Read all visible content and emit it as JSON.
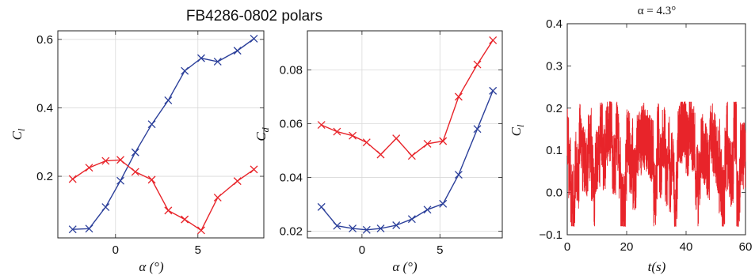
{
  "figure_title": "FB4286-0802 polars",
  "chart_data": [
    {
      "type": "line",
      "xlabel": "α (°)",
      "ylabel": "Cl",
      "xlim": [
        -3.5,
        9
      ],
      "ylim": [
        0.02,
        0.625
      ],
      "xticks": [
        "0",
        "5"
      ],
      "xtick_values": [
        0,
        5
      ],
      "yticks": [
        "0.2",
        "0.4",
        "0.6"
      ],
      "ytick_values": [
        0.2,
        0.4,
        0.6
      ],
      "grid": true,
      "marker": "x",
      "series": [
        {
          "color": "#2b3f9a",
          "x": [
            -2.6,
            -1.6,
            -0.6,
            0.3,
            1.2,
            2.2,
            3.2,
            4.2,
            5.2,
            6.2,
            7.4,
            8.4
          ],
          "y": [
            0.045,
            0.047,
            0.11,
            0.187,
            0.27,
            0.352,
            0.422,
            0.508,
            0.545,
            0.535,
            0.567,
            0.602
          ]
        },
        {
          "color": "#e8242a",
          "x": [
            -2.6,
            -1.6,
            -0.6,
            0.3,
            1.2,
            2.2,
            3.2,
            4.2,
            5.2,
            6.2,
            7.4,
            8.4
          ],
          "y": [
            0.192,
            0.225,
            0.245,
            0.248,
            0.213,
            0.19,
            0.1,
            0.074,
            0.042,
            0.138,
            0.186,
            0.22
          ]
        }
      ]
    },
    {
      "type": "line",
      "xlabel": "α (°)",
      "ylabel": "Cd",
      "xlim": [
        -3.5,
        9
      ],
      "ylim": [
        0.0175,
        0.0945
      ],
      "xticks": [
        "0",
        "5"
      ],
      "xtick_values": [
        0,
        5
      ],
      "yticks": [
        "0.02",
        "0.04",
        "0.06",
        "0.08"
      ],
      "ytick_values": [
        0.02,
        0.04,
        0.06,
        0.08
      ],
      "grid": true,
      "marker": "x",
      "series": [
        {
          "color": "#2b3f9a",
          "x": [
            -2.6,
            -1.6,
            -0.6,
            0.3,
            1.2,
            2.2,
            3.2,
            4.2,
            5.2,
            6.2,
            7.4,
            8.4
          ],
          "y": [
            0.029,
            0.022,
            0.021,
            0.0205,
            0.021,
            0.0222,
            0.0245,
            0.028,
            0.0302,
            0.041,
            0.058,
            0.0722
          ]
        },
        {
          "color": "#e8242a",
          "x": [
            -2.6,
            -1.6,
            -0.6,
            0.3,
            1.2,
            2.2,
            3.2,
            4.2,
            5.2,
            6.2,
            7.4,
            8.4
          ],
          "y": [
            0.0595,
            0.057,
            0.0555,
            0.053,
            0.0485,
            0.0545,
            0.048,
            0.0525,
            0.0535,
            0.07,
            0.082,
            0.091
          ]
        }
      ]
    },
    {
      "type": "line",
      "title": "α = 4.3°",
      "xlabel": "t(s)",
      "ylabel": "Cl",
      "xlim": [
        0,
        60
      ],
      "ylim": [
        -0.1,
        0.4
      ],
      "xticks": [
        "0",
        "20",
        "40",
        "60"
      ],
      "xtick_values": [
        0,
        20,
        40,
        60
      ],
      "yticks": [
        "−0.1",
        "0.0",
        "0.1",
        "0.2",
        "0.3",
        "0.4"
      ],
      "ytick_values": [
        -0.1,
        0.0,
        0.1,
        0.2,
        0.3,
        0.4
      ],
      "grid": false,
      "series": [
        {
          "color": "#e8242a",
          "mean": 0.1,
          "min": -0.08,
          "max": 0.215,
          "t_end": 60
        }
      ]
    }
  ]
}
